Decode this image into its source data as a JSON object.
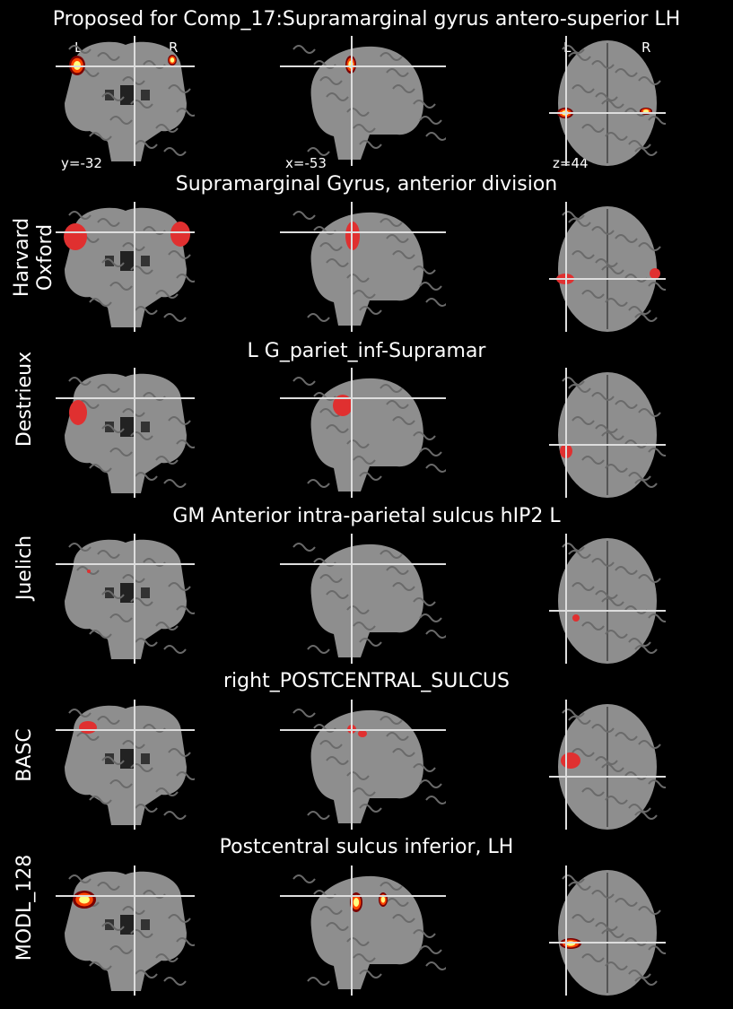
{
  "figure": {
    "title": "Proposed for Comp_17:Supramarginal gyrus antero-superior LH",
    "orientation": {
      "left": "L",
      "right": "R"
    },
    "coords": {
      "coronal": "y=-32",
      "sagittal": "x=-53",
      "axial": "z=44"
    }
  },
  "rows": [
    {
      "label": "",
      "title": ""
    },
    {
      "label": "Harvard\nOxford",
      "title": "Supramarginal Gyrus, anterior division"
    },
    {
      "label": "Destrieux",
      "title": "L G_pariet_inf-Supramar"
    },
    {
      "label": "Juelich",
      "title": "GM Anterior intra-parietal sulcus hIP2 L"
    },
    {
      "label": "BASC",
      "title": "right_POSTCENTRAL_SULCUS"
    },
    {
      "label": "MODL_128",
      "title": "Postcentral sulcus inferior, LH"
    }
  ],
  "colors": {
    "background": "#000000",
    "brain": "#8e8e8e",
    "crosshair": "#dddddd",
    "atlas_region": "#e03030",
    "heat_low": "#7a0000",
    "heat_mid": "#ff4500",
    "heat_high": "#ffff80"
  }
}
